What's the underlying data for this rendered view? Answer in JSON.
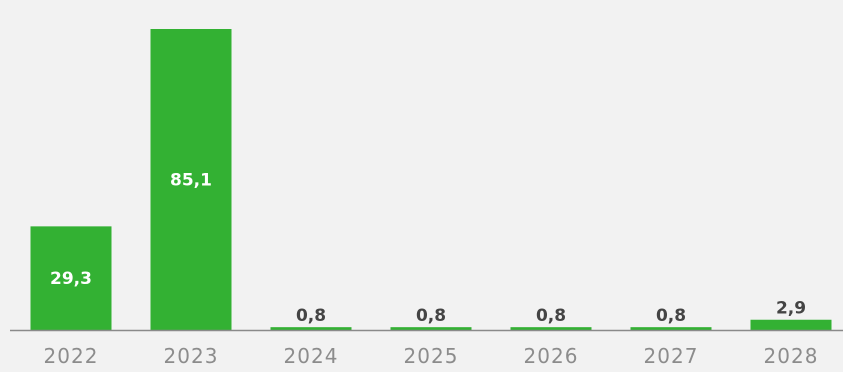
{
  "chart_data": {
    "type": "bar",
    "categories": [
      "2022",
      "2023",
      "2024",
      "2025",
      "2026",
      "2027",
      "2028"
    ],
    "values": [
      29.3,
      85.1,
      0.8,
      0.8,
      0.8,
      0.8,
      2.9
    ],
    "value_labels": [
      "29,3",
      "85,1",
      "0,8",
      "0,8",
      "0,8",
      "0,8",
      "2,9"
    ],
    "title": "",
    "xlabel": "",
    "ylabel": "",
    "ylim": [
      0,
      85.1
    ],
    "grid": false,
    "legend": "none",
    "colors": {
      "bar": "#33b133",
      "background": "#f2f2f2",
      "axis": "#8a8a8a",
      "tick_label": "#8c8c8c",
      "label_inside": "#ffffff",
      "label_outside": "#444444"
    }
  }
}
